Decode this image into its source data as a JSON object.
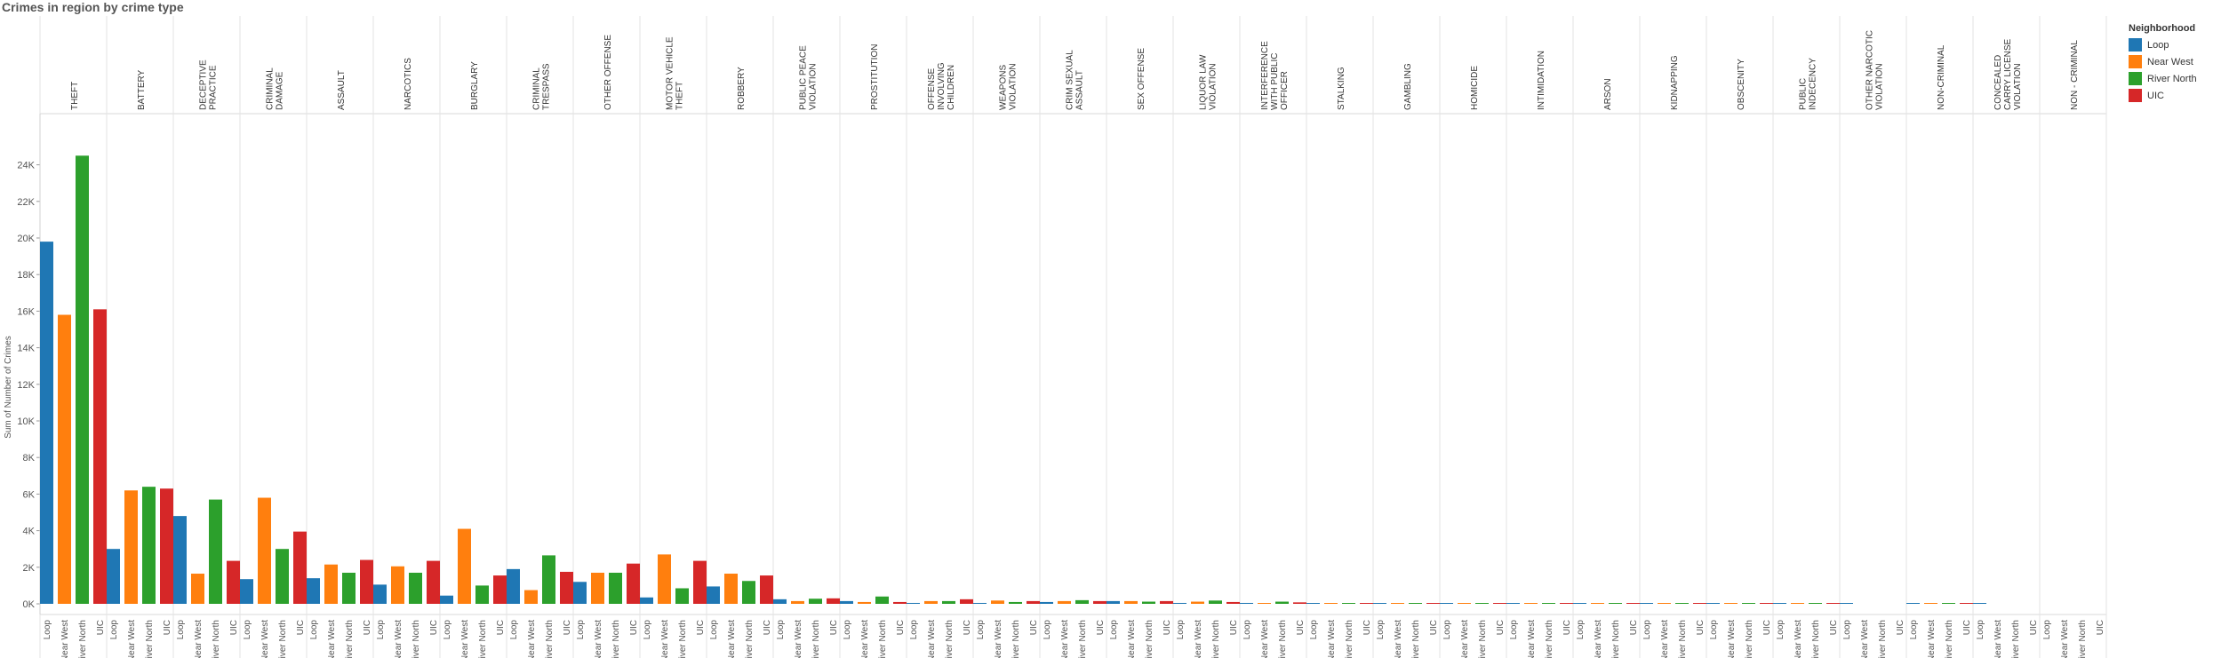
{
  "title": "Crimes in region by crime type",
  "chart_data": {
    "type": "bar",
    "title": "Crimes in region by crime type",
    "xlabel": "",
    "ylabel": "Sum of Number of Crimes",
    "ylim": [
      0,
      25000
    ],
    "yticks": [
      "0K",
      "2K",
      "4K",
      "6K",
      "8K",
      "10K",
      "12K",
      "14K",
      "16K",
      "18K",
      "20K",
      "22K",
      "24K"
    ],
    "grid": false,
    "legend_position": "right",
    "legend_title": "Neighborhood",
    "neighborhoods": [
      "Loop",
      "Near West",
      "River North",
      "UIC"
    ],
    "colors": {
      "Loop": "#1f77b4",
      "Near West": "#ff7f0e",
      "River North": "#2ca02c",
      "UIC": "#d62728"
    },
    "categories": [
      "THEFT",
      "BATTERY",
      "DECEPTIVE PRACTICE",
      "CRIMINAL DAMAGE",
      "ASSAULT",
      "NARCOTICS",
      "BURGLARY",
      "CRIMINAL TRESPASS",
      "OTHER OFFENSE",
      "MOTOR VEHICLE THEFT",
      "ROBBERY",
      "PUBLIC PEACE VIOLATION",
      "PROSTITUTION",
      "OFFENSE INVOLVING CHILDREN",
      "WEAPONS VIOLATION",
      "CRIM SEXUAL ASSAULT",
      "SEX OFFENSE",
      "LIQUOR LAW VIOLATION",
      "INTERFERENCE WITH PUBLIC OFFICER",
      "STALKING",
      "GAMBLING",
      "HOMICIDE",
      "INTIMIDATION",
      "ARSON",
      "KIDNAPPING",
      "OBSCENITY",
      "PUBLIC INDECENCY",
      "OTHER NARCOTIC VIOLATION",
      "NON-CRIMINAL",
      "CONCEALED CARRY LICENSE VIOLATION",
      "NON - CRIMINAL"
    ],
    "series": [
      {
        "name": "Loop",
        "values": [
          19800,
          3000,
          4800,
          1350,
          1400,
          1050,
          450,
          1900,
          1200,
          350,
          950,
          250,
          150,
          50,
          50,
          100,
          150,
          50,
          50,
          20,
          5,
          20,
          40,
          10,
          5,
          5,
          5,
          5,
          5,
          2,
          0
        ]
      },
      {
        "name": "Near West",
        "values": [
          15800,
          6200,
          1650,
          5800,
          2150,
          2050,
          4100,
          750,
          1700,
          2700,
          1650,
          150,
          100,
          150,
          180,
          150,
          150,
          120,
          40,
          40,
          20,
          40,
          40,
          30,
          5,
          5,
          5,
          0,
          5,
          0,
          0
        ]
      },
      {
        "name": "River North",
        "values": [
          24500,
          6400,
          5700,
          3000,
          1700,
          1700,
          1000,
          2650,
          1700,
          850,
          1250,
          280,
          400,
          150,
          100,
          200,
          120,
          180,
          120,
          30,
          10,
          20,
          30,
          10,
          5,
          5,
          5,
          0,
          5,
          0,
          0
        ]
      },
      {
        "name": "UIC",
        "values": [
          16100,
          6300,
          2350,
          3950,
          2400,
          2350,
          1550,
          1750,
          2200,
          2350,
          1550,
          300,
          100,
          250,
          150,
          150,
          150,
          100,
          80,
          40,
          10,
          40,
          40,
          10,
          5,
          5,
          5,
          0,
          5,
          0,
          0
        ]
      }
    ],
    "header_lines": [
      [
        "THEFT"
      ],
      [
        "BATTERY"
      ],
      [
        "DECEPTIVE",
        "PRACTICE"
      ],
      [
        "CRIMINAL",
        "DAMAGE"
      ],
      [
        "ASSAULT"
      ],
      [
        "NARCOTICS"
      ],
      [
        "BURGLARY"
      ],
      [
        "CRIMINAL",
        "TRESPASS"
      ],
      [
        "OTHER OFFENSE"
      ],
      [
        "MOTOR VEHICLE",
        "THEFT"
      ],
      [
        "ROBBERY"
      ],
      [
        "PUBLIC PEACE",
        "VIOLATION"
      ],
      [
        "PROSTITUTION"
      ],
      [
        "OFFENSE",
        "INVOLVING",
        "CHILDREN"
      ],
      [
        "WEAPONS",
        "VIOLATION"
      ],
      [
        "CRIM SEXUAL",
        "ASSAULT"
      ],
      [
        "SEX OFFENSE"
      ],
      [
        "LIQUOR LAW",
        "VIOLATION"
      ],
      [
        "INTERFERENCE",
        "WITH PUBLIC",
        "OFFICER"
      ],
      [
        "STALKING"
      ],
      [
        "GAMBLING"
      ],
      [
        "HOMICIDE"
      ],
      [
        "INTIMIDATION"
      ],
      [
        "ARSON"
      ],
      [
        "KIDNAPPING"
      ],
      [
        "OBSCENITY"
      ],
      [
        "PUBLIC",
        "INDECENCY"
      ],
      [
        "OTHER NARCOTIC",
        "VIOLATION"
      ],
      [
        "NON-CRIMINAL"
      ],
      [
        "CONCEALED",
        "CARRY LICENSE",
        "VIOLATION"
      ],
      [
        "NON - CRIMINAL"
      ]
    ]
  }
}
